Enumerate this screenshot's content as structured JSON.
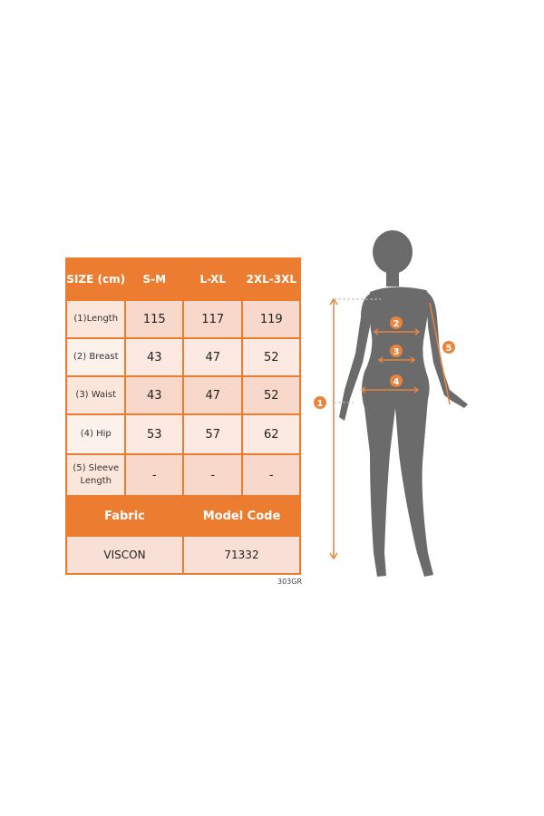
{
  "size_table": {
    "header": {
      "label": "SIZE (cm)",
      "sizes": [
        "S-M",
        "L-XL",
        "2XL-3XL"
      ]
    },
    "rows": [
      {
        "label": "(1)Length",
        "values": [
          "115",
          "117",
          "119"
        ]
      },
      {
        "label": "(2) Breast",
        "values": [
          "43",
          "47",
          "52"
        ]
      },
      {
        "label": "(3) Waist",
        "values": [
          "43",
          "47",
          "52"
        ]
      },
      {
        "label": "(4) Hip",
        "values": [
          "53",
          "57",
          "62"
        ]
      },
      {
        "label": "(5) Sleeve Length",
        "values": [
          "-",
          "-",
          "-"
        ]
      }
    ],
    "fabric_label": "Fabric",
    "fabric_value": "VISCON",
    "model_code_label": "Model Code",
    "model_code_value": "71332"
  },
  "product_code": "303GR",
  "figure": {
    "markers": [
      "1",
      "2",
      "3",
      "4",
      "5"
    ]
  },
  "colors": {
    "accent": "#ec7c30",
    "silhouette": "#6b6b6b"
  }
}
